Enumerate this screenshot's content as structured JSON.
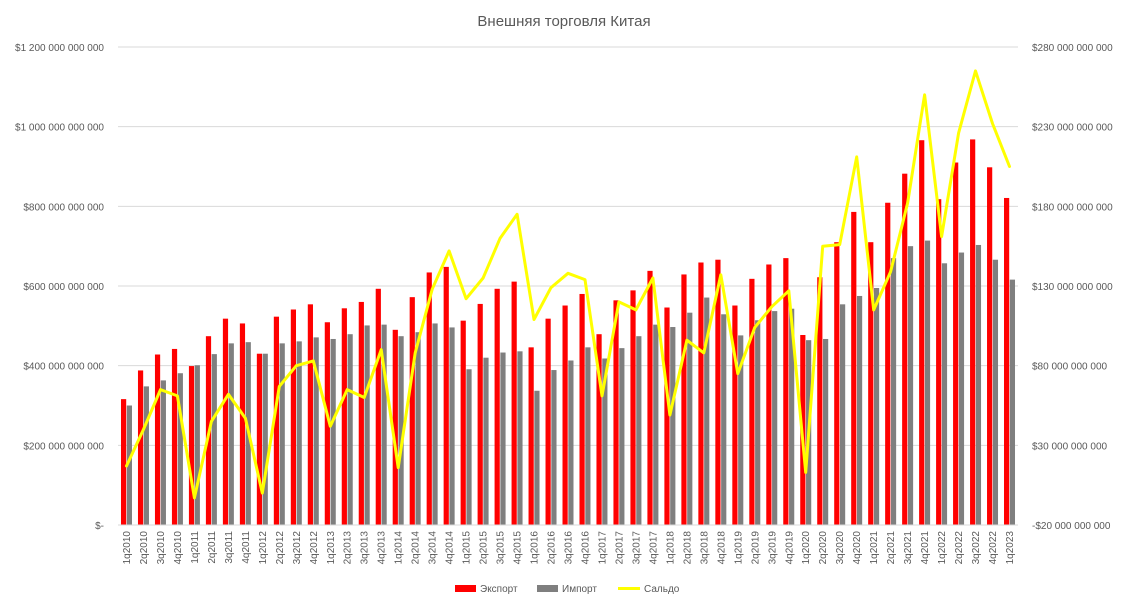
{
  "chart_data": {
    "type": "bar",
    "title": "Внешняя торговля Китая",
    "categories": [
      "1q2010",
      "2q2010",
      "3q2010",
      "4q2010",
      "1q2011",
      "2q2011",
      "3q2011",
      "4q2011",
      "1q2012",
      "2q2012",
      "3q2012",
      "4q2012",
      "1q2013",
      "2q2013",
      "3q2013",
      "4q2013",
      "1q2014",
      "2q2014",
      "3q2014",
      "4q2014",
      "1q2015",
      "2q2015",
      "3q2015",
      "4q2015",
      "1q2016",
      "2q2016",
      "3q2016",
      "4q2016",
      "1q2017",
      "2q2017",
      "3q2017",
      "4q2017",
      "1q2018",
      "2q2018",
      "3q2018",
      "4q2018",
      "1q2019",
      "2q2019",
      "3q2019",
      "4q2019",
      "1q2020",
      "2q2020",
      "3q2020",
      "4q2020",
      "1q2021",
      "2q2021",
      "3q2021",
      "4q2021",
      "1q2022",
      "2q2022",
      "3q2022",
      "4q2022",
      "1q2023"
    ],
    "series": [
      {
        "name": "Экспорт",
        "type": "bar",
        "axis": "left",
        "color": "#FF0000",
        "values": [
          316000000000,
          388000000000,
          428000000000,
          442000000000,
          399000000000,
          474000000000,
          518000000000,
          506000000000,
          430000000000,
          523000000000,
          541000000000,
          554000000000,
          509000000000,
          544000000000,
          560000000000,
          593000000000,
          490000000000,
          572000000000,
          634000000000,
          648000000000,
          513000000000,
          555000000000,
          593000000000,
          611000000000,
          446000000000,
          518000000000,
          551000000000,
          580000000000,
          479000000000,
          564000000000,
          589000000000,
          638000000000,
          546000000000,
          629000000000,
          659000000000,
          666000000000,
          551000000000,
          618000000000,
          654000000000,
          670000000000,
          477000000000,
          622000000000,
          710000000000,
          786000000000,
          710000000000,
          809000000000,
          882000000000,
          966000000000,
          818000000000,
          910000000000,
          968000000000,
          898000000000,
          821000000000
        ]
      },
      {
        "name": "Импорт",
        "type": "bar",
        "axis": "left",
        "color": "#7F7F7F",
        "values": [
          300000000000,
          348000000000,
          363000000000,
          381000000000,
          401000000000,
          429000000000,
          456000000000,
          459000000000,
          430000000000,
          456000000000,
          461000000000,
          471000000000,
          467000000000,
          479000000000,
          501000000000,
          503000000000,
          474000000000,
          484000000000,
          506000000000,
          496000000000,
          391000000000,
          420000000000,
          433000000000,
          436000000000,
          337000000000,
          389000000000,
          413000000000,
          446000000000,
          418000000000,
          444000000000,
          474000000000,
          503000000000,
          497000000000,
          533000000000,
          571000000000,
          529000000000,
          476000000000,
          514000000000,
          537000000000,
          543000000000,
          464000000000,
          467000000000,
          554000000000,
          575000000000,
          595000000000,
          670000000000,
          700000000000,
          714000000000,
          657000000000,
          684000000000,
          703000000000,
          666000000000,
          616000000000
        ]
      },
      {
        "name": "Сальдо",
        "type": "line",
        "axis": "right",
        "color": "#FFFF00",
        "values": [
          17000000000,
          40000000000,
          65000000000,
          61000000000,
          -3000000000,
          45000000000,
          62000000000,
          47000000000,
          0,
          67000000000,
          80000000000,
          83000000000,
          42000000000,
          65000000000,
          60000000000,
          90000000000,
          16000000000,
          88000000000,
          128000000000,
          152000000000,
          122000000000,
          135000000000,
          160000000000,
          175000000000,
          109000000000,
          129000000000,
          138000000000,
          134000000000,
          61000000000,
          120000000000,
          115000000000,
          135000000000,
          49000000000,
          96000000000,
          88000000000,
          137000000000,
          75000000000,
          104000000000,
          117000000000,
          127000000000,
          13000000000,
          155000000000,
          156000000000,
          211000000000,
          115000000000,
          139000000000,
          182000000000,
          250000000000,
          161000000000,
          226000000000,
          265000000000,
          232000000000,
          205000000000
        ]
      }
    ],
    "y_left": {
      "ylim": [
        0,
        1200000000000
      ],
      "ticks": [
        0,
        200000000000,
        400000000000,
        600000000000,
        800000000000,
        1000000000000,
        1200000000000
      ],
      "tick_labels": [
        "$-",
        "$200 000 000 000",
        "$400 000 000 000",
        "$600 000 000 000",
        "$800 000 000 000",
        "$1 000 000 000 000",
        "$1 200 000 000 000"
      ]
    },
    "y_right": {
      "ylim": [
        -20000000000,
        280000000000
      ],
      "ticks": [
        -20000000000,
        30000000000,
        80000000000,
        130000000000,
        180000000000,
        230000000000,
        280000000000
      ],
      "tick_labels": [
        "-$20 000 000 000",
        "$30 000 000 000",
        "$80 000 000 000",
        "$130 000 000 000",
        "$180 000 000 000",
        "$230 000 000 000",
        "$280 000 000 000"
      ]
    },
    "grid": true,
    "legend_position": "bottom"
  }
}
